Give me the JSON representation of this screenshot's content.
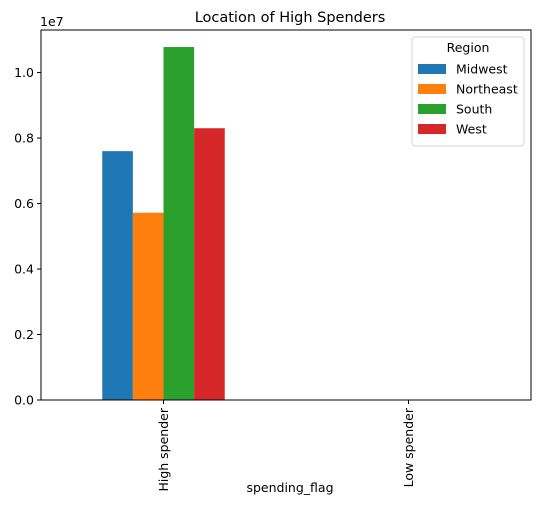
{
  "chart_data": {
    "type": "bar",
    "title": "Location of High Spenders",
    "xlabel": "spending_flag",
    "ylabel": "",
    "scale_label": "1e7",
    "categories": [
      "High spender",
      "Low spender"
    ],
    "series": [
      {
        "name": "Midwest",
        "color": "#1f77b4",
        "values": [
          7600000,
          0
        ]
      },
      {
        "name": "Northeast",
        "color": "#ff7f0e",
        "values": [
          5720000,
          0
        ]
      },
      {
        "name": "South",
        "color": "#2ca02c",
        "values": [
          10780000,
          0
        ]
      },
      {
        "name": "West",
        "color": "#d62728",
        "values": [
          8300000,
          0
        ]
      }
    ],
    "ylim": [
      0,
      11300000
    ],
    "yticks": [
      0,
      2000000,
      4000000,
      6000000,
      8000000,
      10000000
    ],
    "ytick_labels": [
      "0.0",
      "0.2",
      "0.4",
      "0.6",
      "0.8",
      "1.0"
    ],
    "legend": {
      "title": "Region",
      "placement": "top-right"
    },
    "grid": false
  }
}
